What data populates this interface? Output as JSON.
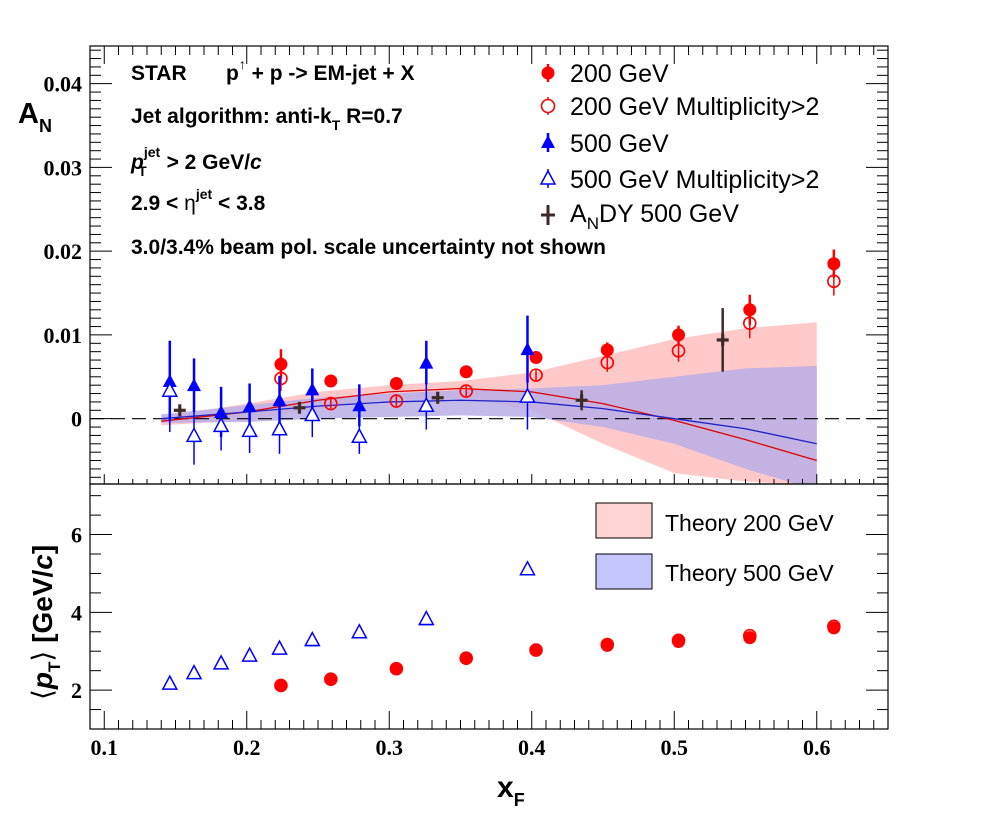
{
  "chart_data": {
    "type": "scatter",
    "experiment": "STAR",
    "reaction": {
      "p1": "p",
      "pol_sup": "↑",
      "rest": " + p -> EM-jet + X"
    },
    "jet_algorithm": {
      "text": "Jet algorithm: anti-k",
      "sub": "T",
      "rest": " R=0.7"
    },
    "pt_cut": {
      "p": "p",
      "sup": "jet",
      "sub": "T",
      "rest": " > 2 GeV/",
      "c": "c"
    },
    "eta_cut": {
      "pre": "2.9 < ",
      "eta": "η",
      "sup": "jet",
      "post": " < 3.8"
    },
    "pol_note": "3.0/3.4% beam pol. scale uncertainty not shown",
    "xlabel": {
      "main": "x",
      "sub": "F"
    },
    "xlim": [
      0.09,
      0.65
    ],
    "xticks": [
      "0.1",
      "0.2",
      "0.3",
      "0.4",
      "0.5",
      "0.6"
    ],
    "xtick_values": [
      0.1,
      0.2,
      0.3,
      0.4,
      0.5,
      0.6
    ],
    "top_panel": {
      "ylabel": {
        "main": "A",
        "sub": "N"
      },
      "ylim": [
        -0.0078,
        0.0445
      ],
      "yticks": [
        "0",
        "0.01",
        "0.02",
        "0.03",
        "0.04"
      ],
      "ytick_values": [
        0,
        0.01,
        0.02,
        0.03,
        0.04
      ],
      "legend": [
        {
          "label": "200 GeV",
          "series": "s200"
        },
        {
          "label": "200 GeV Multiplicity>2",
          "series": "s200m"
        },
        {
          "label": "500 GeV",
          "series": "s500"
        },
        {
          "label": "500 GeV Multiplicity>2",
          "series": "s500m"
        },
        {
          "label_main": "A",
          "label_sub": "N",
          "label_rest": "DY 500 GeV",
          "series": "andy"
        }
      ],
      "series": [
        {
          "id": "s200",
          "name": "200 GeV",
          "marker": "filled-circle",
          "color": "#ff0000",
          "x": [
            0.224,
            0.259,
            0.305,
            0.354,
            0.403,
            0.453,
            0.503,
            0.553,
            0.612
          ],
          "y": [
            0.0065,
            0.0045,
            0.0042,
            0.0056,
            0.0073,
            0.0082,
            0.01,
            0.013,
            0.0185
          ],
          "err": [
            0.0018,
            0.0004,
            0.0004,
            0.0004,
            0.0005,
            0.0009,
            0.0011,
            0.0018,
            0.0017
          ]
        },
        {
          "id": "s200m",
          "name": "200 GeV Multiplicity>2",
          "marker": "open-circle",
          "color": "#ff0000",
          "x": [
            0.224,
            0.259,
            0.305,
            0.354,
            0.403,
            0.453,
            0.503,
            0.553,
            0.612
          ],
          "y": [
            0.0048,
            0.0018,
            0.0021,
            0.0033,
            0.0052,
            0.0067,
            0.0081,
            0.0114,
            0.0164
          ],
          "err": [
            0.0015,
            0.0006,
            0.0006,
            0.0006,
            0.0007,
            0.0011,
            0.0013,
            0.0018,
            0.0017
          ]
        },
        {
          "id": "s500",
          "name": "500 GeV",
          "marker": "filled-triangle",
          "color": "#0000ff",
          "x": [
            0.146,
            0.163,
            0.182,
            0.202,
            0.223,
            0.246,
            0.279,
            0.326,
            0.397
          ],
          "y": [
            0.0045,
            0.004,
            0.0008,
            0.0015,
            0.0022,
            0.0035,
            0.0016,
            0.0067,
            0.0083
          ],
          "err": [
            0.0048,
            0.0032,
            0.003,
            0.0027,
            0.0029,
            0.0025,
            0.0025,
            0.0026,
            0.004
          ]
        },
        {
          "id": "s500m",
          "name": "500 GeV Multiplicity>2",
          "marker": "open-triangle",
          "color": "#0000ff",
          "x": [
            0.146,
            0.163,
            0.182,
            0.202,
            0.223,
            0.246,
            0.279,
            0.326,
            0.397
          ],
          "y": [
            0.0034,
            -0.002,
            -0.0008,
            -0.0014,
            -0.0012,
            0.0005,
            -0.0021,
            0.0016,
            0.0027
          ],
          "err": [
            0.005,
            0.0035,
            0.003,
            0.0027,
            0.003,
            0.0027,
            0.0021,
            0.0029,
            0.004
          ]
        },
        {
          "id": "andy",
          "name": "ANDY 500 GeV",
          "marker": "cross",
          "color": "#3f2a2a",
          "x": [
            0.153,
            0.237,
            0.334,
            0.435,
            0.534
          ],
          "y": [
            0.001,
            0.0013,
            0.0025,
            0.0022,
            0.0094
          ],
          "err": [
            0.0006,
            0.0006,
            0.0007,
            0.0012,
            0.0038
          ]
        }
      ],
      "theory_bands": [
        {
          "name": "Theory 200 GeV",
          "color": "#ffc9c9",
          "line_color": "#e00000",
          "x": [
            0.14,
            0.2,
            0.25,
            0.3,
            0.35,
            0.4,
            0.45,
            0.5,
            0.55,
            0.6
          ],
          "lower": [
            -0.0008,
            -0.0002,
            0.0012,
            0.0023,
            0.0025,
            0.001,
            -0.003,
            -0.0065,
            -0.0075,
            -0.008
          ],
          "central": [
            -0.0003,
            0.0008,
            0.0022,
            0.0032,
            0.0036,
            0.0032,
            0.0018,
            -0.0002,
            -0.0025,
            -0.005
          ],
          "upper": [
            0.0002,
            0.0018,
            0.0032,
            0.004,
            0.0045,
            0.0055,
            0.0075,
            0.0095,
            0.0108,
            0.0115
          ]
        },
        {
          "name": "Theory 500 GeV",
          "color": "#b9aee6",
          "line_color": "#1d22c8",
          "x": [
            0.14,
            0.2,
            0.25,
            0.3,
            0.35,
            0.4,
            0.45,
            0.5,
            0.55,
            0.6
          ],
          "lower": [
            -0.0005,
            -0.0004,
            0.0,
            0.0002,
            0.0004,
            0.0002,
            -0.001,
            -0.003,
            -0.006,
            -0.0085
          ],
          "central": [
            0.0,
            0.0008,
            0.0015,
            0.002,
            0.0022,
            0.002,
            0.0012,
            0.0,
            -0.0012,
            -0.003
          ],
          "upper": [
            0.0005,
            0.0016,
            0.0025,
            0.003,
            0.0034,
            0.0036,
            0.004,
            0.005,
            0.006,
            0.0063
          ]
        }
      ]
    },
    "bottom_panel": {
      "ylabel": {
        "p": "p",
        "sub": "T",
        "rest": " [GeV/",
        "c": "c",
        "close": "]"
      },
      "ylim": [
        1.0,
        7.3
      ],
      "yticks": [
        "2",
        "4",
        "6"
      ],
      "ytick_values": [
        2,
        4,
        6
      ],
      "legend": [
        {
          "label": "Theory 200 GeV",
          "color": "#ffd4d4"
        },
        {
          "label": "Theory 500 GeV",
          "color": "#c6c6ff"
        }
      ],
      "series": [
        {
          "name": "200 GeV",
          "marker": "filled-circle",
          "color": "#ff0000",
          "x": [
            0.224,
            0.259,
            0.305,
            0.354,
            0.403,
            0.453,
            0.503,
            0.553,
            0.612
          ],
          "y": [
            2.12,
            2.28,
            2.55,
            2.82,
            3.03,
            3.15,
            3.25,
            3.35,
            3.6
          ]
        },
        {
          "name": "200 GeV Multiplicity>2",
          "marker": "open-circle",
          "color": "#ff0000",
          "x": [
            0.224,
            0.259,
            0.305,
            0.354,
            0.403,
            0.453,
            0.503,
            0.553,
            0.612
          ],
          "y": [
            2.12,
            2.28,
            2.55,
            2.82,
            3.03,
            3.17,
            3.28,
            3.4,
            3.64
          ]
        },
        {
          "name": "500 GeV",
          "marker": "filled-triangle",
          "color": "#0000ff",
          "x": [
            0.146,
            0.163,
            0.182,
            0.202,
            0.223,
            0.246,
            0.279,
            0.326,
            0.397
          ],
          "y": [
            2.18,
            2.45,
            2.7,
            2.9,
            3.08,
            3.28,
            3.5,
            3.82,
            5.1
          ]
        },
        {
          "name": "500 GeV Multiplicity>2",
          "marker": "open-triangle",
          "color": "#0000ff",
          "x": [
            0.146,
            0.163,
            0.182,
            0.202,
            0.223,
            0.246,
            0.279,
            0.326,
            0.397
          ],
          "y": [
            2.18,
            2.45,
            2.7,
            2.9,
            3.08,
            3.3,
            3.5,
            3.84,
            5.12
          ]
        }
      ]
    }
  }
}
